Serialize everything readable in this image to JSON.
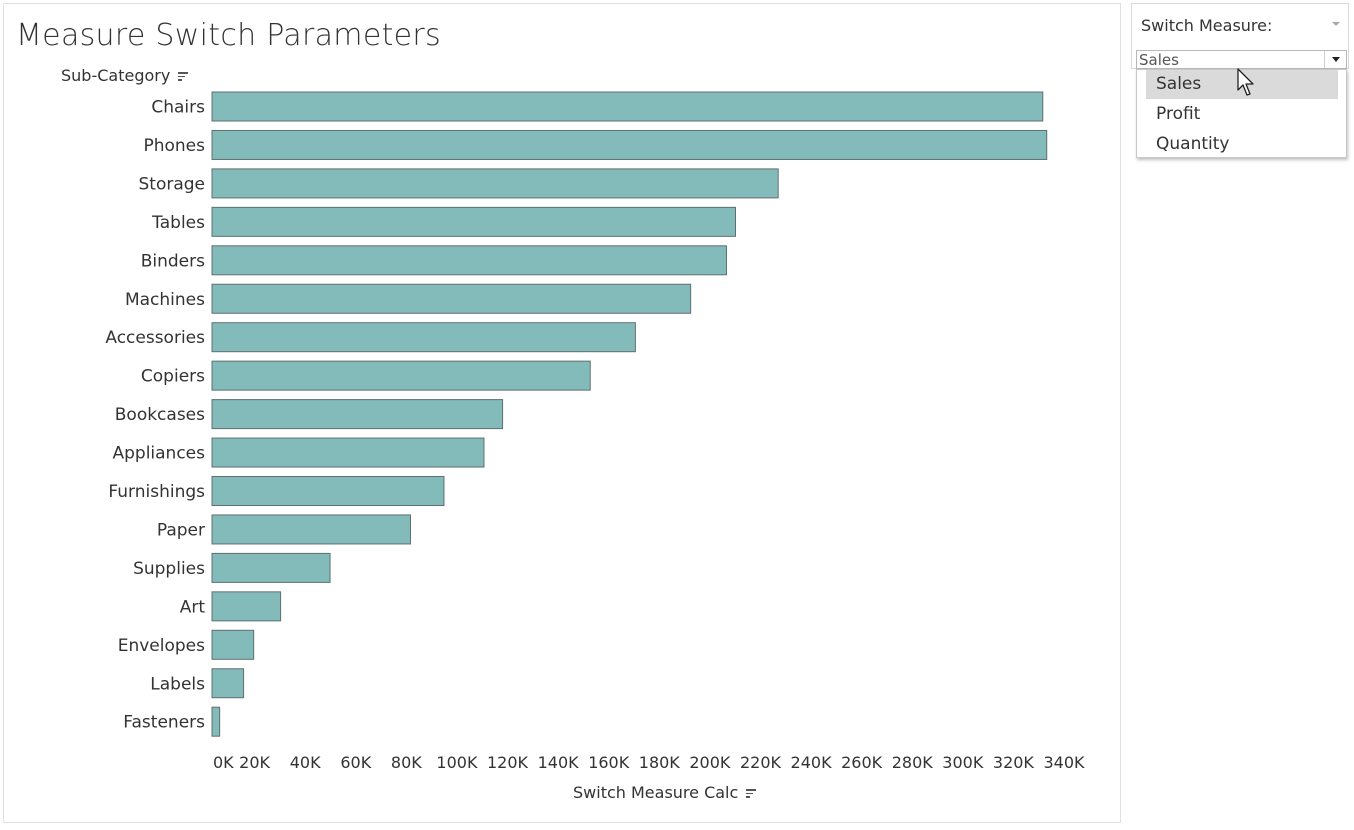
{
  "sheet": {
    "title": "Measure Switch Parameters",
    "rows_header": "Sub-Category"
  },
  "parameter": {
    "title": "Switch Measure:",
    "selected": "Sales",
    "options": [
      "Sales",
      "Profit",
      "Quantity"
    ],
    "hovered_option": "Sales"
  },
  "colors": {
    "bar_fill": "#83bbbb",
    "bar_border": "#5f6f6f",
    "hover_bg": "#dadada"
  },
  "chart_data": {
    "type": "bar",
    "orientation": "horizontal",
    "title": "Measure Switch Parameters",
    "ylabel": "Sub-Category",
    "xlabel": "Switch Measure Calc",
    "categories": [
      "Chairs",
      "Phones",
      "Storage",
      "Tables",
      "Binders",
      "Machines",
      "Accessories",
      "Copiers",
      "Bookcases",
      "Appliances",
      "Furnishings",
      "Paper",
      "Supplies",
      "Art",
      "Envelopes",
      "Labels",
      "Fasteners"
    ],
    "values": [
      328449,
      330007,
      223844,
      206966,
      203413,
      189239,
      167380,
      149528,
      114880,
      107532,
      91705,
      78479,
      46674,
      27119,
      16476,
      12486,
      3024
    ],
    "xlim": [
      0,
      340000
    ],
    "x_ticks": [
      "0K",
      "20K",
      "40K",
      "60K",
      "80K",
      "100K",
      "120K",
      "140K",
      "160K",
      "180K",
      "200K",
      "220K",
      "240K",
      "260K",
      "280K",
      "300K",
      "320K",
      "340K"
    ],
    "grid": false,
    "legend": "none"
  }
}
